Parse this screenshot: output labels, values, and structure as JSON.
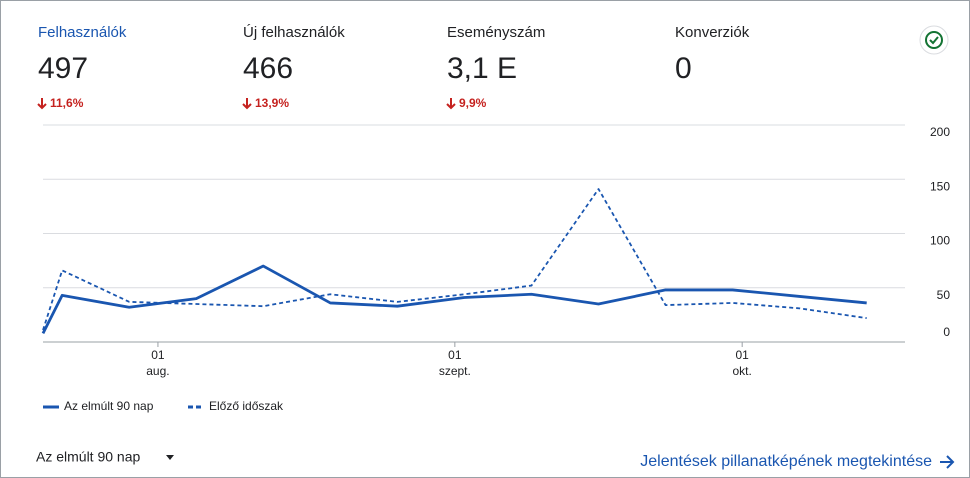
{
  "metrics": [
    {
      "label": "Felhasználók",
      "value": "497",
      "change": "11,6%"
    },
    {
      "label": "Új felhasználók",
      "value": "466",
      "change": "13,9%"
    },
    {
      "label": "Eseményszám",
      "value": "3,1 E",
      "change": "9,9%"
    },
    {
      "label": "Konverziók",
      "value": "0"
    }
  ],
  "chart_data": {
    "type": "line",
    "x": [
      201,
      203,
      210,
      217,
      224,
      231,
      238,
      245,
      252,
      259,
      266,
      273,
      280,
      287
    ],
    "series": [
      {
        "name": "Az elmúlt 90 nap",
        "color": "#1a56b0",
        "dash": false,
        "values": [
          8,
          43,
          32,
          40,
          70,
          36,
          33,
          41,
          44,
          35,
          48,
          48,
          42,
          36
        ]
      },
      {
        "name": "Előző időszak",
        "color": "#1a56b0",
        "dash": true,
        "values": [
          11,
          66,
          37,
          35,
          33,
          44,
          37,
          44,
          52,
          141,
          34,
          36,
          31,
          22
        ]
      }
    ],
    "xlim": [
      201,
      291
    ],
    "xticks": [
      {
        "value": 213,
        "label": "01 aug."
      },
      {
        "value": 244,
        "label": "01 szept."
      },
      {
        "value": 274,
        "label": "01 okt."
      }
    ],
    "ylim": [
      0,
      200
    ],
    "yticks": [
      0,
      50,
      100,
      150,
      200
    ],
    "grid": true
  },
  "footer": {
    "range": "Az elmúlt 90 nap",
    "link": "Jelentések pillanatképének megtekintése"
  }
}
